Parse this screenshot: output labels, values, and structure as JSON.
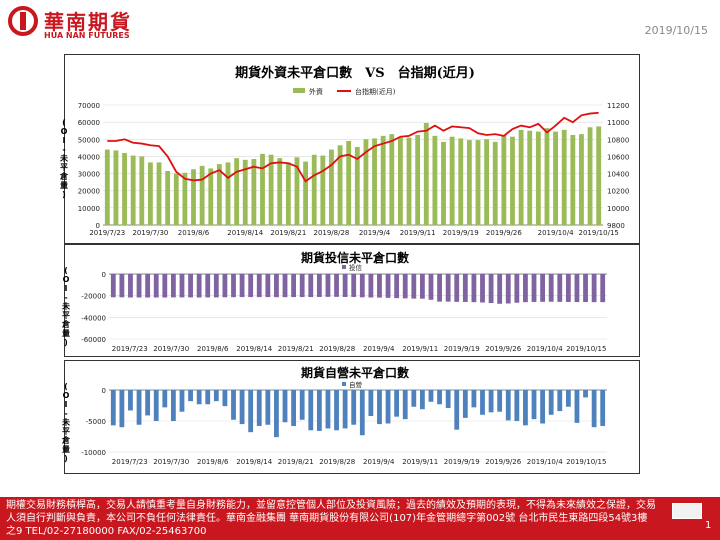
{
  "header": {
    "logo_cn": "華南期貨",
    "logo_en": "HUA NAN FUTURES",
    "date": "2019/10/15"
  },
  "footer": {
    "disclaimer": "期權交易財務槓桿高，交易人請慎重考量自身財務能力，並留意控管個人部位及投資風險；過去的績效及預期的表現，不得為未來績效之保證，交易人須自行判斷與負責，本公司不負任何法律責任。華南金融集團 華南期貨股份有限公司(107)年金管期總字第002號 台北市民生東路四段54號3樓之9 TEL/02-27180000 FAX/02-25463700",
    "page_number": "1"
  },
  "colors": {
    "brand_red": "#c8171e",
    "foreign_bar": "#9bbb59",
    "taiex_line": "#e01010",
    "trust_bar": "#8064a2",
    "dealer_bar": "#4f81bd"
  },
  "chart_data": [
    {
      "type": "bar+line",
      "title": "期貨外資未平倉口數　VS　台指期(近月)",
      "ylabel": "(OI-未平倉量)",
      "legend": [
        "外資",
        "台指期(近月)"
      ],
      "dates": [
        "2019/7/23",
        "2019/7/24",
        "2019/7/25",
        "2019/7/26",
        "2019/7/29",
        "2019/7/30",
        "2019/7/31",
        "2019/8/1",
        "2019/8/2",
        "2019/8/5",
        "2019/8/6",
        "2019/8/7",
        "2019/8/8",
        "2019/8/9",
        "2019/8/12",
        "2019/8/13",
        "2019/8/14",
        "2019/8/15",
        "2019/8/16",
        "2019/8/19",
        "2019/8/20",
        "2019/8/21",
        "2019/8/22",
        "2019/8/23",
        "2019/8/26",
        "2019/8/27",
        "2019/8/28",
        "2019/8/29",
        "2019/8/30",
        "2019/9/2",
        "2019/9/3",
        "2019/9/4",
        "2019/9/5",
        "2019/9/6",
        "2019/9/9",
        "2019/9/10",
        "2019/9/11",
        "2019/9/12",
        "2019/9/16",
        "2019/9/17",
        "2019/9/18",
        "2019/9/19",
        "2019/9/20",
        "2019/9/23",
        "2019/9/24",
        "2019/9/25",
        "2019/9/26",
        "2019/9/27",
        "2019/9/30",
        "2019/10/1",
        "2019/10/2",
        "2019/10/3",
        "2019/10/4",
        "2019/10/7",
        "2019/10/8",
        "2019/10/9",
        "2019/10/14",
        "2019/10/15"
      ],
      "xticks": [
        "2019/7/23",
        "2019/7/30",
        "2019/8/6",
        "2019/8/14",
        "2019/8/21",
        "2019/8/28",
        "2019/9/4",
        "2019/9/11",
        "2019/9/19",
        "2019/9/26",
        "2019/10/4",
        "2019/10/15"
      ],
      "foreign_oi": [
        44000,
        43500,
        42000,
        40500,
        40000,
        36500,
        36500,
        31500,
        30000,
        30500,
        32500,
        34500,
        33000,
        35500,
        36500,
        39000,
        38000,
        38500,
        41500,
        41000,
        39000,
        36500,
        39500,
        37000,
        41000,
        40500,
        44000,
        46500,
        49000,
        45500,
        50000,
        50500,
        52000,
        53000,
        51000,
        51000,
        52500,
        59500,
        52000,
        48500,
        51500,
        50500,
        49500,
        49500,
        50000,
        48500,
        52500,
        51500,
        55500,
        55000,
        54500,
        56500,
        54500,
        55500,
        52500,
        53000,
        57000,
        57500
      ],
      "foreign_ylim": [
        0,
        70000
      ],
      "foreign_yticks": [
        "0",
        "10000",
        "20000",
        "30000",
        "40000",
        "50000",
        "60000",
        "70000"
      ],
      "taiex": [
        10780,
        10780,
        10800,
        10760,
        10750,
        10730,
        10720,
        10600,
        10420,
        10340,
        10320,
        10330,
        10400,
        10440,
        10350,
        10420,
        10450,
        10480,
        10460,
        10520,
        10530,
        10520,
        10480,
        10310,
        10380,
        10430,
        10500,
        10600,
        10620,
        10570,
        10650,
        10720,
        10750,
        10780,
        10830,
        10840,
        10890,
        10900,
        10960,
        10900,
        10950,
        10940,
        10930,
        10870,
        10850,
        10860,
        10840,
        10920,
        10960,
        10940,
        10980,
        10880,
        10960,
        11050,
        11000,
        11080,
        11100,
        11110
      ],
      "taiex_ylim": [
        9800,
        11200
      ],
      "taiex_yticks": [
        "9800",
        "10000",
        "10200",
        "10400",
        "10600",
        "10800",
        "11000",
        "11200"
      ]
    },
    {
      "type": "bar",
      "title": "期貨投信未平倉口數",
      "ylabel": "(OI-未平倉量)",
      "legend": [
        "投信"
      ],
      "values": [
        -21500,
        -21500,
        -21700,
        -21700,
        -21700,
        -21700,
        -21700,
        -21600,
        -21600,
        -21600,
        -21700,
        -21600,
        -21600,
        -21500,
        -21400,
        -21300,
        -21300,
        -21300,
        -21300,
        -21400,
        -21400,
        -21300,
        -21300,
        -21300,
        -21200,
        -21100,
        -21100,
        -21200,
        -21200,
        -21500,
        -21700,
        -21800,
        -22000,
        -22300,
        -22500,
        -22700,
        -22800,
        -23800,
        -25500,
        -25500,
        -25700,
        -25800,
        -26000,
        -26300,
        -26800,
        -27500,
        -27200,
        -26500,
        -26000,
        -25800,
        -25700,
        -25600,
        -25700,
        -25800,
        -25900,
        -25900,
        -26000,
        -26000
      ],
      "ylim": [
        -60000,
        0
      ],
      "yticks": [
        "0",
        "-20000",
        "-40000",
        "-60000"
      ],
      "xticks": [
        "2019/7/23",
        "2019/7/30",
        "2019/8/6",
        "2019/8/14",
        "2019/8/21",
        "2019/8/28",
        "2019/9/4",
        "2019/9/11",
        "2019/9/19",
        "2019/9/26",
        "2019/10/4",
        "2019/10/15"
      ]
    },
    {
      "type": "bar",
      "title": "期貨自營未平倉口數",
      "ylabel": "(OI-未平倉量)",
      "legend": [
        "自營"
      ],
      "values": [
        -5700,
        -6000,
        -3300,
        -5600,
        -4100,
        -5000,
        -2800,
        -5000,
        -3500,
        -1800,
        -2300,
        -2300,
        -1800,
        -2600,
        -4800,
        -5500,
        -6800,
        -5800,
        -5600,
        -7600,
        -5200,
        -5800,
        -4800,
        -6500,
        -6600,
        -6200,
        -6500,
        -6200,
        -5600,
        -7300,
        -4200,
        -5500,
        -5400,
        -4300,
        -4700,
        -2700,
        -3100,
        -1900,
        -2300,
        -2900,
        -6400,
        -4500,
        -2800,
        -4000,
        -3600,
        -3500,
        -4900,
        -5000,
        -5700,
        -4700,
        -5400,
        -4000,
        -3400,
        -2700,
        -5300,
        -1200,
        -6000,
        -5800
      ],
      "ylim": [
        -10000,
        0
      ],
      "yticks": [
        "0",
        "-5000",
        "-10000"
      ],
      "xticks": [
        "2019/7/23",
        "2019/7/30",
        "2019/8/6",
        "2019/8/14",
        "2019/8/21",
        "2019/8/28",
        "2019/9/4",
        "2019/9/11",
        "2019/9/19",
        "2019/9/26",
        "2019/10/4",
        "2019/10/15"
      ]
    }
  ]
}
